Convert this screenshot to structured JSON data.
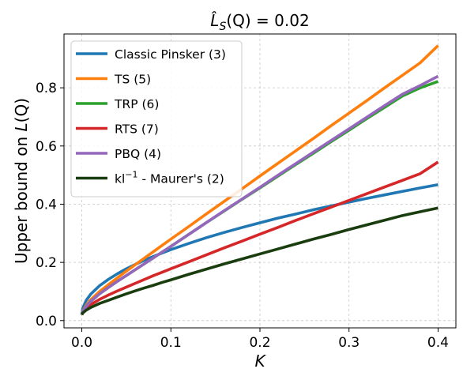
{
  "chart_data": {
    "type": "line",
    "title": {
      "main": "L̂",
      "sub": "S",
      "rest": "(Q) = 0.02"
    },
    "xlabel": "K",
    "ylabel": {
      "prefix": "Upper bound on ",
      "italic": "L",
      "suffix": "(Q)"
    },
    "xlim": [
      -0.02,
      0.42
    ],
    "ylim": [
      -0.025,
      0.985
    ],
    "xticks": [
      0.0,
      0.1,
      0.2,
      0.3,
      0.4
    ],
    "xtick_labels": [
      "0.0",
      "0.1",
      "0.2",
      "0.3",
      "0.4"
    ],
    "yticks": [
      0.0,
      0.2,
      0.4,
      0.6,
      0.8
    ],
    "ytick_labels": [
      "0.0",
      "0.2",
      "0.4",
      "0.6",
      "0.8"
    ],
    "grid": true,
    "grid_style": "dashed",
    "legend_position": "upper-left",
    "x": [
      0.0,
      0.001,
      0.005,
      0.01,
      0.02,
      0.03,
      0.04,
      0.05,
      0.06,
      0.07,
      0.08,
      0.09,
      0.1,
      0.12,
      0.14,
      0.16,
      0.18,
      0.2,
      0.22,
      0.24,
      0.26,
      0.28,
      0.3,
      0.32,
      0.34,
      0.36,
      0.38,
      0.4
    ],
    "series": [
      {
        "name": "Classic Pinsker (3)",
        "color": "#1f77b4",
        "values": [
          0.02,
          0.042,
          0.07,
          0.091,
          0.12,
          0.142,
          0.161,
          0.178,
          0.193,
          0.207,
          0.22,
          0.232,
          0.244,
          0.265,
          0.285,
          0.303,
          0.32,
          0.336,
          0.352,
          0.366,
          0.381,
          0.394,
          0.407,
          0.42,
          0.432,
          0.444,
          0.456,
          0.467
        ]
      },
      {
        "name": "TS (5)",
        "color": "#ff7f0e",
        "values": [
          0.02,
          0.032,
          0.053,
          0.072,
          0.1,
          0.124,
          0.147,
          0.17,
          0.192,
          0.214,
          0.236,
          0.258,
          0.28,
          0.323,
          0.367,
          0.41,
          0.453,
          0.497,
          0.54,
          0.583,
          0.626,
          0.67,
          0.713,
          0.756,
          0.8,
          0.843,
          0.886,
          0.945
        ]
      },
      {
        "name": "TRP (6)",
        "color": "#2ca02c",
        "values": [
          0.02,
          0.03,
          0.049,
          0.066,
          0.092,
          0.114,
          0.135,
          0.155,
          0.175,
          0.195,
          0.215,
          0.235,
          0.255,
          0.296,
          0.337,
          0.377,
          0.417,
          0.456,
          0.496,
          0.536,
          0.575,
          0.615,
          0.654,
          0.694,
          0.733,
          0.772,
          0.8,
          0.822
        ]
      },
      {
        "name": "RTS (7)",
        "color": "#d62728",
        "values": [
          0.02,
          0.028,
          0.043,
          0.055,
          0.073,
          0.088,
          0.102,
          0.115,
          0.128,
          0.141,
          0.154,
          0.166,
          0.178,
          0.202,
          0.226,
          0.25,
          0.273,
          0.297,
          0.32,
          0.344,
          0.367,
          0.39,
          0.413,
          0.436,
          0.459,
          0.482,
          0.505,
          0.545
        ]
      },
      {
        "name": "PBQ (4)",
        "color": "#9467bd",
        "values": [
          0.02,
          0.03,
          0.049,
          0.066,
          0.092,
          0.114,
          0.135,
          0.155,
          0.175,
          0.195,
          0.215,
          0.235,
          0.255,
          0.296,
          0.337,
          0.378,
          0.418,
          0.458,
          0.499,
          0.539,
          0.579,
          0.619,
          0.659,
          0.699,
          0.739,
          0.778,
          0.808,
          0.84
        ]
      },
      {
        "name_prefix": "kl",
        "name_sup": "−1",
        "name_suffix": " - Maurer's (2)",
        "color": "#1a3d0f",
        "values": [
          0.02,
          0.026,
          0.036,
          0.045,
          0.059,
          0.07,
          0.081,
          0.092,
          0.102,
          0.112,
          0.121,
          0.131,
          0.14,
          0.159,
          0.177,
          0.195,
          0.212,
          0.229,
          0.246,
          0.263,
          0.28,
          0.296,
          0.313,
          0.329,
          0.345,
          0.361,
          0.374,
          0.387
        ]
      }
    ]
  }
}
